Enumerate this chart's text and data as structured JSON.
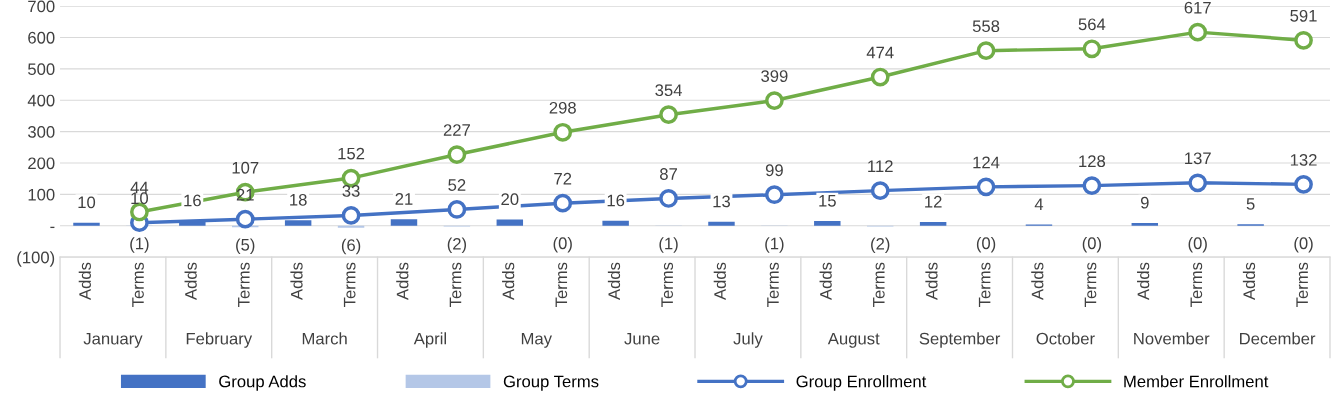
{
  "chart_data": {
    "type": "bar",
    "categories": [
      "Adds",
      "Terms",
      "Adds",
      "Terms",
      "Adds",
      "Terms",
      "Adds",
      "Terms",
      "Adds",
      "Terms",
      "Adds",
      "Terms",
      "Adds",
      "Terms",
      "Adds",
      "Terms",
      "Adds",
      "Terms",
      "Adds",
      "Terms",
      "Adds",
      "Terms",
      "Adds",
      "Terms"
    ],
    "annotations": [
      "January",
      "February",
      "March",
      "April",
      "May",
      "June",
      "July",
      "August",
      "September",
      "October",
      "November",
      "December"
    ],
    "series": [
      {
        "name": "Group Adds",
        "color": "#4472c4",
        "values": [
          10,
          null,
          16,
          null,
          18,
          null,
          21,
          null,
          20,
          null,
          16,
          null,
          13,
          null,
          15,
          null,
          12,
          null,
          4,
          null,
          9,
          null,
          5,
          null
        ],
        "value_labels": [
          "10",
          null,
          "16",
          null,
          "18",
          null,
          "21",
          null,
          "20",
          null,
          "16",
          null,
          "13",
          null,
          "15",
          null,
          "12",
          null,
          "4",
          null,
          "9",
          null,
          "5",
          null
        ]
      },
      {
        "name": "Group Terms",
        "color": "#b4c7e7",
        "values": [
          null,
          -1,
          null,
          -5,
          null,
          -6,
          null,
          -2,
          null,
          0,
          null,
          -1,
          null,
          -1,
          null,
          -2,
          null,
          0,
          null,
          0,
          null,
          0,
          null,
          0
        ],
        "value_labels": [
          null,
          "(1)",
          null,
          "(5)",
          null,
          "(6)",
          null,
          "(2)",
          null,
          "(0)",
          null,
          "(1)",
          null,
          "(1)",
          null,
          "(2)",
          null,
          "(0)",
          null,
          "(0)",
          null,
          "(0)",
          null,
          "(0)"
        ]
      },
      {
        "name": "Group Enrollment",
        "type": "line",
        "color": "#4472c4",
        "values": [
          null,
          10,
          null,
          21,
          null,
          33,
          null,
          52,
          null,
          72,
          null,
          87,
          null,
          99,
          null,
          112,
          null,
          124,
          null,
          128,
          null,
          137,
          null,
          132
        ],
        "value_labels": [
          null,
          "10",
          null,
          "21",
          null,
          "33",
          null,
          "52",
          null,
          "72",
          null,
          "87",
          null,
          "99",
          null,
          "112",
          null,
          "124",
          null,
          "128",
          null,
          "137",
          null,
          "132"
        ]
      },
      {
        "name": "Member Enrollment",
        "type": "line",
        "color": "#70ad47",
        "values": [
          null,
          44,
          null,
          107,
          null,
          152,
          null,
          227,
          null,
          298,
          null,
          354,
          null,
          399,
          null,
          474,
          null,
          558,
          null,
          564,
          null,
          617,
          null,
          591
        ],
        "value_labels": [
          null,
          "44",
          null,
          "107",
          null,
          "152",
          null,
          "227",
          null,
          "298",
          null,
          "354",
          null,
          "399",
          null,
          "474",
          null,
          "558",
          null,
          "564",
          null,
          "617",
          null,
          "591"
        ]
      }
    ],
    "ylim": [
      -100,
      700
    ],
    "yticks": [
      {
        "value": -100,
        "label": "(100)"
      },
      {
        "value": 0,
        "label": "-"
      },
      100,
      200,
      300,
      400,
      500,
      600,
      700
    ],
    "grid": "y",
    "legend": "bottom",
    "marker": "circle",
    "line_style": "solid"
  }
}
